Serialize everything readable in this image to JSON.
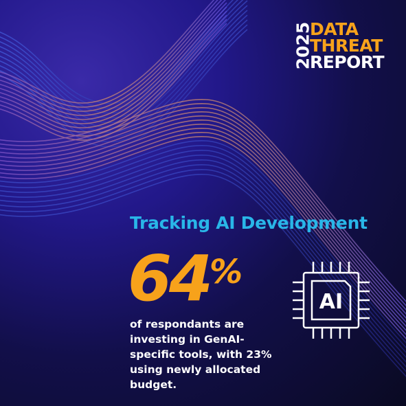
{
  "logo": {
    "year": "2025",
    "line1": "DATA",
    "line2": "THREAT",
    "line3": "REPORT"
  },
  "heading": "Tracking AI Development",
  "stat": {
    "number": "64",
    "unit": "%"
  },
  "description": "of respondants are investing in GenAI-specific tools, with 23% using newly allocated budget.",
  "icon_label": "AI"
}
